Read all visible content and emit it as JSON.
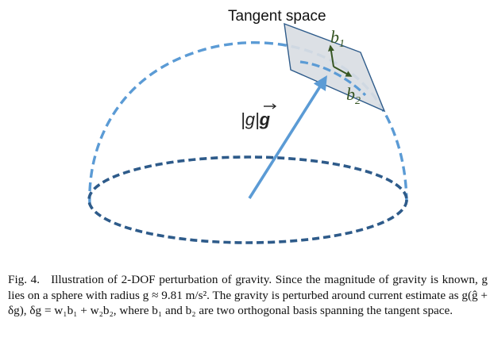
{
  "diagram": {
    "tangent_space_label": "Tangent space",
    "b1_label": "b",
    "b1_subscript": "1",
    "b2_label": "b",
    "b2_subscript": "2",
    "vector_label_prefix": "|g|",
    "vector_label_symbol": "g",
    "colors": {
      "sphere_arc": "#5b9bd5",
      "base_ellipse": "#2e5b8a",
      "vector": "#5b9bd5",
      "plane_fill": "#d9dde3",
      "plane_stroke": "#2e5b8a",
      "basis_arrows": "#375623"
    }
  },
  "caption": {
    "label": "Fig. 4.",
    "text": "Illustration of 2-DOF perturbation of gravity. Since the magnitude of gravity is known, g lies on a sphere with radius g ≈ 9.81 m/s². The gravity is perturbed around current estimate as g(ĝ + δg), δg = w₁b₁ + w₂b₂, where b₁ and b₂ are two orthogonal basis spanning the tangent space."
  }
}
